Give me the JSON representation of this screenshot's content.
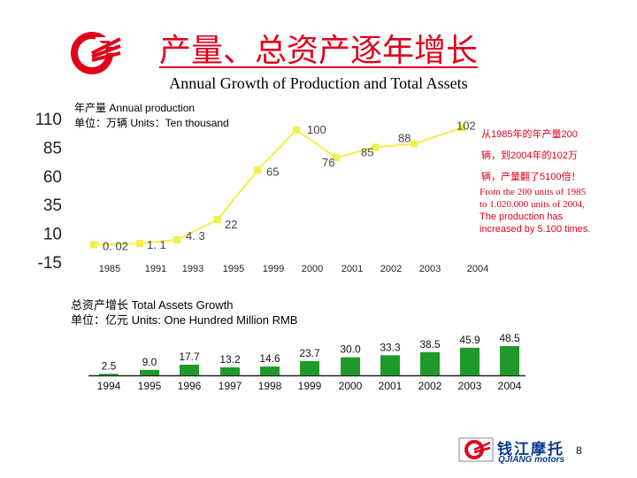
{
  "title_cn": "产量、总资产逐年增长",
  "title_en": "Annual Growth of Production and Total Assets",
  "production": {
    "caption_line1": "年产量 Annual production",
    "caption_line2": "单位：万辆 Units：Ten thousand",
    "annotation_cn": [
      "从1985年的年产量200",
      "辆，到2004年的102万",
      "辆，产量翻了5100倍！"
    ],
    "annotation_en": [
      "From the 200 units of 1985",
      "to 1.020.000 units of 2004,",
      "The production has",
      "increased by 5.100 times."
    ]
  },
  "assets": {
    "caption_line1": "总资产增长 Total Assets Growth",
    "caption_line2": "单位：亿元 Units: One Hundred Million RMB"
  },
  "logo_text": {
    "cn": "钱江摩托",
    "en": "QJIANG motors"
  },
  "page_number": "8",
  "colors": {
    "title": "#e0001b",
    "line": "#f2f04a",
    "bar": "#1f9a2a",
    "axis": "#222222"
  },
  "chart_data": [
    {
      "type": "line",
      "x": [
        "1985",
        "1991",
        "1993",
        "1995",
        "1999",
        "2000",
        "2001",
        "2002",
        "2003",
        "2004"
      ],
      "values": [
        0.02,
        1.1,
        4.3,
        22,
        65,
        100,
        76,
        85,
        88,
        102
      ],
      "data_labels": [
        "0. 02",
        "1. 1",
        "4. 3",
        "22",
        "65",
        "100",
        "76",
        "85",
        "88",
        "102"
      ],
      "y_ticks": [
        "110",
        "85",
        "60",
        "35",
        "10",
        "-15"
      ],
      "ylim": [
        -15,
        110
      ],
      "grid": false,
      "legend": false
    },
    {
      "type": "bar",
      "categories": [
        "1994",
        "1995",
        "1996",
        "1997",
        "1998",
        "1999",
        "2000",
        "2001",
        "2002",
        "2003",
        "2004"
      ],
      "values": [
        2.5,
        9.0,
        17.7,
        13.2,
        14.6,
        23.7,
        30.0,
        33.3,
        38.5,
        45.9,
        48.5
      ],
      "data_labels": [
        "2.5",
        "9.0",
        "17.7",
        "13.2",
        "14.6",
        "23.7",
        "30.0",
        "33.3",
        "38.5",
        "45.9",
        "48.5"
      ],
      "grid": false,
      "legend": false
    }
  ]
}
